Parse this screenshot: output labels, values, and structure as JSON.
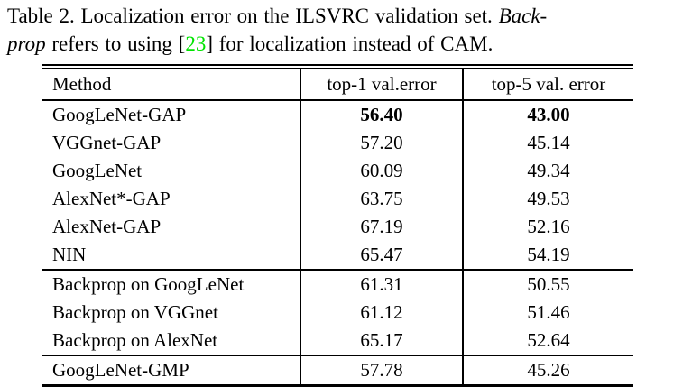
{
  "caption": {
    "line1_text": "Table 2. Localization error on the ILSVRC validation set. ",
    "line1_italic": "Back-",
    "line2_italic": "prop",
    "line2_text_a": " refers to using [",
    "citation_ref": "23",
    "line2_text_b": "] for localization instead of CAM."
  },
  "table": {
    "columns": [
      "Method",
      "top-1 val.error",
      "top-5 val. error"
    ],
    "groups": [
      {
        "rows": [
          {
            "method": "GoogLeNet-GAP",
            "top1": "56.40",
            "top5": "43.00"
          },
          {
            "method": "VGGnet-GAP",
            "top1": "57.20",
            "top5": "45.14"
          },
          {
            "method": "GoogLeNet",
            "top1": "60.09",
            "top5": "49.34"
          },
          {
            "method": "AlexNet*-GAP",
            "top1": "63.75",
            "top5": "49.53"
          },
          {
            "method": "AlexNet-GAP",
            "top1": "67.19",
            "top5": "52.16"
          },
          {
            "method": "NIN",
            "top1": "65.47",
            "top5": "54.19"
          }
        ]
      },
      {
        "rows": [
          {
            "method": "Backprop on GoogLeNet",
            "top1": "61.31",
            "top5": "50.55"
          },
          {
            "method": "Backprop on VGGnet",
            "top1": "61.12",
            "top5": "51.46"
          },
          {
            "method": "Backprop on AlexNet",
            "top1": "65.17",
            "top5": "52.64"
          }
        ]
      },
      {
        "rows": [
          {
            "method": "GoogLeNet-GMP",
            "top1": "57.78",
            "top5": "45.26"
          }
        ]
      }
    ]
  },
  "colors": {
    "citation_green": "#00e400",
    "text": "#000000",
    "background": "#ffffff"
  }
}
